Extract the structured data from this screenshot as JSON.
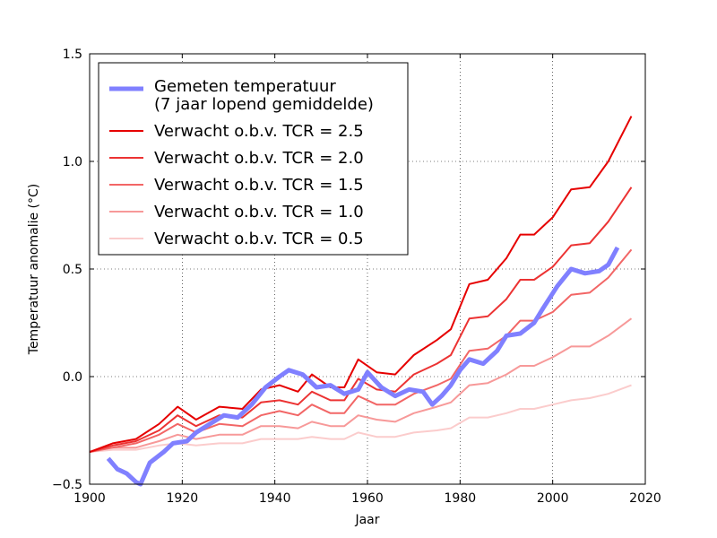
{
  "chart_data": {
    "type": "line",
    "xlabel": "Jaar",
    "ylabel": "Temperatuur anomalie (°C)",
    "xlim": [
      1900,
      2020
    ],
    "ylim": [
      -0.5,
      1.5
    ],
    "xticks": [
      1900,
      1920,
      1940,
      1960,
      1980,
      2000,
      2020
    ],
    "yticks": [
      {
        "value": -0.5,
        "label": "−0.5"
      },
      {
        "value": 0,
        "label": "0.0"
      },
      0.5,
      {
        "value": 1,
        "label": "1.0"
      },
      1.5
    ],
    "grid": true,
    "legend": "upper left",
    "x": [
      1900,
      1905,
      1910,
      1915,
      1919,
      1923,
      1928,
      1933,
      1937,
      1941,
      1945,
      1948,
      1952,
      1955,
      1958,
      1962,
      1966,
      1970,
      1975,
      1978,
      1982,
      1986,
      1990,
      1993,
      1996,
      2000,
      2004,
      2008,
      2012,
      2017
    ],
    "series": [
      {
        "name": "Gemeten temperatuur\n(7 jaar lopend gemiddelde)",
        "color": "#8080ff",
        "width": 5,
        "x": [
          1904,
          1906,
          1908,
          1910,
          1911,
          1913,
          1916,
          1918,
          1921,
          1923,
          1926,
          1929,
          1932,
          1935,
          1938,
          1941,
          1943,
          1946,
          1949,
          1952,
          1955,
          1958,
          1960,
          1963,
          1966,
          1969,
          1972,
          1974,
          1976,
          1978,
          1980,
          1982,
          1985,
          1988,
          1990,
          1993,
          1996,
          1998,
          2001,
          2004,
          2007,
          2010,
          2012,
          2014
        ],
        "values": [
          -0.38,
          -0.43,
          -0.45,
          -0.49,
          -0.5,
          -0.4,
          -0.35,
          -0.31,
          -0.3,
          -0.26,
          -0.22,
          -0.18,
          -0.19,
          -0.13,
          -0.05,
          0.0,
          0.03,
          0.01,
          -0.05,
          -0.04,
          -0.08,
          -0.06,
          0.02,
          -0.05,
          -0.09,
          -0.06,
          -0.07,
          -0.13,
          -0.09,
          -0.04,
          0.03,
          0.08,
          0.06,
          0.12,
          0.19,
          0.2,
          0.25,
          0.32,
          0.42,
          0.5,
          0.48,
          0.49,
          0.52,
          0.6
        ]
      },
      {
        "name": "Verwacht o.b.v. TCR = 2.5",
        "color": "#e60000",
        "width": 2,
        "values": [
          -0.35,
          -0.31,
          -0.29,
          -0.22,
          -0.14,
          -0.2,
          -0.14,
          -0.15,
          -0.06,
          -0.04,
          -0.07,
          0.01,
          -0.05,
          -0.05,
          0.08,
          0.02,
          0.01,
          0.1,
          0.17,
          0.22,
          0.43,
          0.45,
          0.55,
          0.66,
          0.66,
          0.74,
          0.87,
          0.88,
          1.0,
          1.21
        ]
      },
      {
        "name": "Verwacht o.b.v. TCR = 2.0",
        "color": "#ec3333",
        "width": 2,
        "values": [
          -0.35,
          -0.32,
          -0.3,
          -0.25,
          -0.18,
          -0.23,
          -0.18,
          -0.19,
          -0.12,
          -0.11,
          -0.13,
          -0.07,
          -0.11,
          -0.11,
          -0.01,
          -0.06,
          -0.07,
          0.01,
          0.06,
          0.1,
          0.27,
          0.28,
          0.36,
          0.45,
          0.45,
          0.51,
          0.61,
          0.62,
          0.72,
          0.88
        ]
      },
      {
        "name": "Verwacht o.b.v. TCR = 1.5",
        "color": "#f26666",
        "width": 2,
        "values": [
          -0.35,
          -0.33,
          -0.31,
          -0.27,
          -0.22,
          -0.26,
          -0.22,
          -0.23,
          -0.18,
          -0.16,
          -0.18,
          -0.13,
          -0.17,
          -0.17,
          -0.09,
          -0.13,
          -0.13,
          -0.08,
          -0.04,
          -0.01,
          0.12,
          0.13,
          0.19,
          0.26,
          0.26,
          0.3,
          0.38,
          0.39,
          0.46,
          0.59
        ]
      },
      {
        "name": "Verwacht o.b.v. TCR = 1.0",
        "color": "#f79999",
        "width": 2,
        "values": [
          -0.35,
          -0.33,
          -0.33,
          -0.3,
          -0.27,
          -0.29,
          -0.27,
          -0.27,
          -0.23,
          -0.23,
          -0.24,
          -0.21,
          -0.23,
          -0.23,
          -0.18,
          -0.2,
          -0.21,
          -0.17,
          -0.14,
          -0.12,
          -0.04,
          -0.03,
          0.01,
          0.05,
          0.05,
          0.09,
          0.14,
          0.14,
          0.19,
          0.27
        ]
      },
      {
        "name": "Verwacht o.b.v. TCR = 0.5",
        "color": "#fbcccc",
        "width": 2,
        "values": [
          -0.35,
          -0.34,
          -0.34,
          -0.32,
          -0.31,
          -0.32,
          -0.31,
          -0.31,
          -0.29,
          -0.29,
          -0.29,
          -0.28,
          -0.29,
          -0.29,
          -0.26,
          -0.28,
          -0.28,
          -0.26,
          -0.25,
          -0.24,
          -0.19,
          -0.19,
          -0.17,
          -0.15,
          -0.15,
          -0.13,
          -0.11,
          -0.1,
          -0.08,
          -0.04
        ]
      }
    ]
  }
}
